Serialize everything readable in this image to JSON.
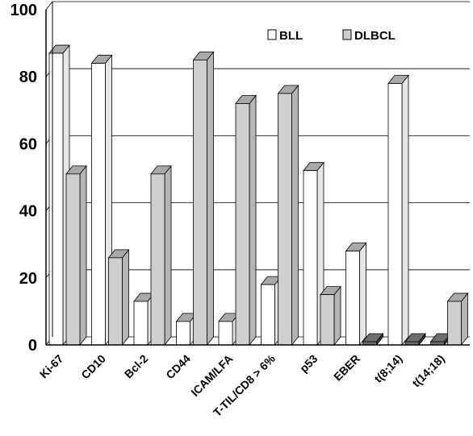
{
  "chart_data": {
    "type": "bar",
    "categories": [
      "Ki-67",
      "CD10",
      "Bcl-2",
      "CD44",
      "ICAM/LFA",
      "T-TIL/CD8 > 6%",
      "p53",
      "EBER",
      "t(8;14)",
      "t(14;18)"
    ],
    "series": [
      {
        "name": "BLL",
        "values": [
          87,
          84,
          13,
          7,
          7,
          18,
          52,
          28,
          78,
          0
        ]
      },
      {
        "name": "DLBCL",
        "values": [
          51,
          26,
          51,
          85,
          72,
          75,
          15,
          0,
          0,
          13
        ]
      }
    ],
    "ylim": [
      0,
      100
    ],
    "yticks": [
      "0",
      "20",
      "40",
      "60",
      "80",
      "100"
    ],
    "grid": true,
    "legend_position": "top-right",
    "three_d": true,
    "colors": {
      "BLL": "#ffffff",
      "DLBCL": "#cfcfcf",
      "floor": "#6e6e6e",
      "grid": "#000000"
    }
  }
}
